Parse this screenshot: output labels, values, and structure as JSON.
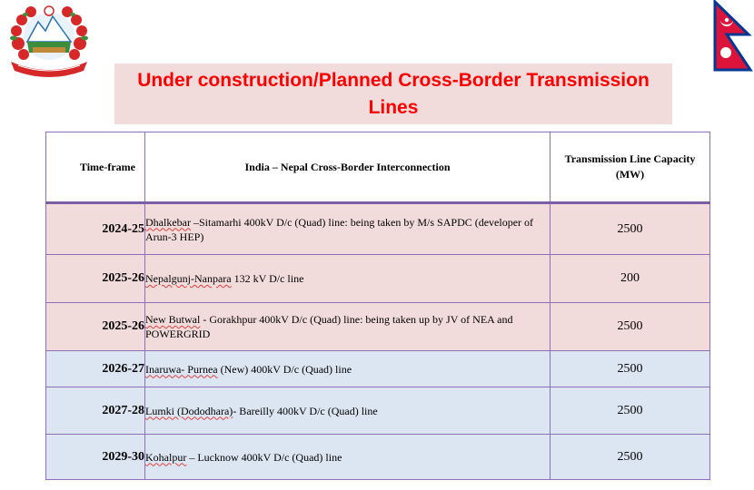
{
  "title": "Under construction/Planned Cross-Border Transmission Lines",
  "table": {
    "headers": {
      "timeframe": "Time-frame",
      "interconnection": "India – Nepal Cross-Border Interconnection",
      "capacity": "Transmission Line Capacity (MW)"
    },
    "rows": [
      {
        "timeframe": "2024-25",
        "name": "Dhalkebar",
        "rest": " –Sitamarhi 400kV D/c (Quad) line: being taken by M/s SAPDC (developer of Arun-3 HEP)",
        "capacity": "2500"
      },
      {
        "timeframe": "2025-26",
        "name": "Nepalgunj-Nanpara",
        "rest": " 132 kV D/c line",
        "capacity": "200"
      },
      {
        "timeframe": "2025-26",
        "name": "New Butwal",
        "rest": " - Gorakhpur  400kV D/c (Quad) line: being taken up by JV of NEA and POWERGRID",
        "capacity": "2500"
      },
      {
        "timeframe": "2026-27",
        "name": "Inaruwa- Purnea",
        "rest": " (New)  400kV D/c (Quad) line",
        "capacity": "2500"
      },
      {
        "timeframe": "2027-28",
        "name": "Lumki (Dododhara)",
        "rest": "- Bareilly  400kV D/c (Quad) line",
        "capacity": "2500"
      },
      {
        "timeframe": "2029-30",
        "name": "Kohalpur",
        "rest": " – Lucknow 400kV D/c  (Quad) line",
        "capacity": "2500"
      }
    ]
  },
  "colors": {
    "title_red": "#ff0000",
    "title_bg": "#f2dcdb",
    "row_pink": "#f2dcdb",
    "row_blue": "#dce6f2",
    "border": "#8e6fb8"
  },
  "icons": {
    "left": "nepal-emblem-icon",
    "right": "nepal-flag-icon"
  }
}
